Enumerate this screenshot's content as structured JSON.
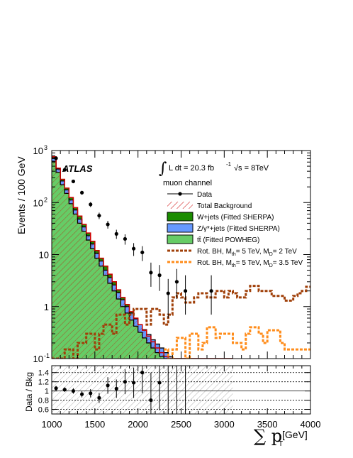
{
  "chart_data": {
    "type": "area",
    "experiment_label": "ATLAS",
    "lumi_label": "L dt = 20.3 fb",
    "lumi_superscript": "-1",
    "energy_label": "√s = 8TeV",
    "channel_label": "muon channel",
    "ylabel": "Events / 100 GeV",
    "ratio_ylabel": "Data / Bkg",
    "xlabel_prefix": "∑ p",
    "xlabel_subscript": "T",
    "xlabel_unit": "[GeV]",
    "xlim": [
      1000,
      4000
    ],
    "ylim": [
      0.1,
      1000
    ],
    "yscale": "log",
    "ratio_ylim": [
      0.5,
      1.55
    ],
    "x_ticks": [
      1000,
      1500,
      2000,
      2500,
      3000,
      3500,
      4000
    ],
    "y_ticks": [
      {
        "value": 0.1,
        "base": "10",
        "exp": "-1"
      },
      {
        "value": 1,
        "base": "1",
        "exp": ""
      },
      {
        "value": 10,
        "base": "10",
        "exp": ""
      },
      {
        "value": 100,
        "base": "10",
        "exp": "2"
      },
      {
        "value": 1000,
        "base": "10",
        "exp": "3"
      }
    ],
    "ratio_ticks": [
      "0.6",
      "0.8",
      "1",
      "1.2",
      "1.4"
    ],
    "ratio_tick_values": [
      0.6,
      0.8,
      1.0,
      1.2,
      1.4
    ],
    "bin_edges": [
      1000,
      1050,
      1100,
      1150,
      1200,
      1250,
      1300,
      1350,
      1400,
      1450,
      1500,
      1550,
      1600,
      1650,
      1700,
      1750,
      1800,
      1850,
      1900,
      1950,
      2000,
      2050,
      2100,
      2150,
      2200,
      2250,
      2300,
      2350,
      2400,
      2450,
      2500,
      2550,
      2600,
      2650,
      2700,
      2750,
      2800,
      2850,
      2900,
      2950,
      3000,
      3050,
      3100
    ],
    "ttbar": [
      620,
      380,
      220,
      150,
      95,
      60,
      40,
      28,
      19,
      13,
      8.5,
      6,
      4,
      2.8,
      2,
      1.4,
      1.0,
      0.75,
      0.55,
      0.42,
      0.32,
      0.25,
      0.2,
      0.16,
      0.13,
      0.11,
      0.1,
      0.1,
      0.1,
      0.1,
      0.1,
      0.1,
      0.1,
      0.1,
      0.1,
      0.1,
      0.1,
      0.1,
      0.1,
      0.1,
      0.1,
      0.1
    ],
    "zjets": [
      720,
      440,
      260,
      175,
      112,
      72,
      48,
      34,
      23,
      16,
      10.5,
      7.5,
      5,
      3.6,
      2.6,
      1.85,
      1.35,
      1.0,
      0.75,
      0.58,
      0.45,
      0.36,
      0.29,
      0.23,
      0.19,
      0.16,
      0.13,
      0.11,
      0.1,
      0.1,
      0.1,
      0.1,
      0.1,
      0.1,
      0.1,
      0.1,
      0.1,
      0.1,
      0.1,
      0.1,
      0.1,
      0.1
    ],
    "total": [
      760,
      460,
      280,
      190,
      125,
      80,
      55,
      38,
      26,
      18,
      12,
      8.5,
      6,
      4.2,
      3.0,
      2.1,
      1.5,
      1.1,
      0.8,
      0.6,
      0.45,
      0.35,
      0.27,
      0.21,
      0.16,
      0.13,
      0.11,
      0.1,
      0.1,
      0.1,
      0.1,
      0.1,
      0.1,
      0.1,
      0.1,
      0.1,
      0.1,
      0.1,
      0.1,
      0.1,
      0.1,
      0.1
    ],
    "data_points": [
      {
        "x": 1050,
        "y": 710,
        "err_lo": 30,
        "err_hi": 30
      },
      {
        "x": 1150,
        "y": 425,
        "err_lo": 22,
        "err_hi": 22
      },
      {
        "x": 1250,
        "y": 255,
        "err_lo": 17,
        "err_hi": 17
      },
      {
        "x": 1350,
        "y": 155,
        "err_lo": 13,
        "err_hi": 13
      },
      {
        "x": 1450,
        "y": 92,
        "err_lo": 10,
        "err_hi": 10
      },
      {
        "x": 1550,
        "y": 56,
        "err_lo": 8,
        "err_hi": 8
      },
      {
        "x": 1650,
        "y": 38,
        "err_lo": 6.5,
        "err_hi": 6.5
      },
      {
        "x": 1750,
        "y": 25,
        "err_lo": 5,
        "err_hi": 5
      },
      {
        "x": 1850,
        "y": 20,
        "err_lo": 4.5,
        "err_hi": 4.5
      },
      {
        "x": 1950,
        "y": 13,
        "err_lo": 3.6,
        "err_hi": 3.6
      },
      {
        "x": 2050,
        "y": 11,
        "err_lo": 3.5,
        "err_hi": 3.5
      },
      {
        "x": 2150,
        "y": 4.5,
        "err_lo": 2.1,
        "err_hi": 2.5
      },
      {
        "x": 2250,
        "y": 4.0,
        "err_lo": 2.0,
        "err_hi": 2.3
      },
      {
        "x": 2350,
        "y": 1.8,
        "err_lo": 1.2,
        "err_hi": 1.6
      },
      {
        "x": 2450,
        "y": 3.0,
        "err_lo": 1.6,
        "err_hi": 2.3
      },
      {
        "x": 2550,
        "y": 2.0,
        "err_lo": 1.3,
        "err_hi": 2.0
      },
      {
        "x": 2850,
        "y": 2.0,
        "err_lo": 1.3,
        "err_hi": 2.0
      }
    ],
    "bh_md2": [
      0.1,
      0.1,
      0.1,
      0.15,
      0.15,
      0.1,
      0.2,
      0.2,
      0.3,
      0.3,
      0.15,
      0.3,
      0.45,
      0.45,
      0.3,
      0.7,
      0.7,
      0.45,
      0.7,
      0.9,
      0.9,
      0.9,
      0.45,
      0.9,
      0.9,
      0.7,
      0.45,
      0.7,
      1.5,
      1.8,
      1.5,
      1.2,
      1.2,
      1.5,
      1.8,
      1.8,
      1.5,
      1.5,
      2.0,
      2.0,
      1.5,
      2.0,
      1.8,
      1.5,
      1.5,
      2.0,
      2.5,
      2.5,
      2.0,
      2.0,
      2.0,
      1.6,
      1.6,
      1.6,
      1.3,
      1.3,
      1.6,
      1.8,
      2.0,
      2.4
    ],
    "bh_md35_start": 2300,
    "bh_md35": [
      0.15,
      0.1,
      0.15,
      0.25,
      0.25,
      0.1,
      0.3,
      0.3,
      0.15,
      0.2,
      0.4,
      0.4,
      0.25,
      0.3,
      0.3,
      0.3,
      0.2,
      0.2,
      0.15,
      0.3,
      0.4,
      0.4,
      0.3,
      0.2,
      0.35,
      0.35,
      0.35,
      0.2,
      0.15,
      0.15,
      0.15,
      0.15,
      0.15,
      0.15
    ],
    "ratio_points": [
      {
        "x": 1050,
        "y": 1.06,
        "err_lo": 0.05,
        "err_hi": 0.05
      },
      {
        "x": 1150,
        "y": 1.03,
        "err_lo": 0.05,
        "err_hi": 0.05
      },
      {
        "x": 1250,
        "y": 1.0,
        "err_lo": 0.06,
        "err_hi": 0.06
      },
      {
        "x": 1350,
        "y": 0.93,
        "err_lo": 0.07,
        "err_hi": 0.07
      },
      {
        "x": 1450,
        "y": 0.95,
        "err_lo": 0.09,
        "err_hi": 0.09
      },
      {
        "x": 1550,
        "y": 0.85,
        "err_lo": 0.11,
        "err_hi": 0.11
      },
      {
        "x": 1650,
        "y": 1.12,
        "err_lo": 0.18,
        "err_hi": 0.18
      },
      {
        "x": 1750,
        "y": 1.05,
        "err_lo": 0.2,
        "err_hi": 0.2
      },
      {
        "x": 1850,
        "y": 1.2,
        "err_lo": 0.27,
        "err_hi": 0.27
      },
      {
        "x": 1950,
        "y": 1.18,
        "err_lo": 0.33,
        "err_hi": 0.33
      },
      {
        "x": 2050,
        "y": 1.4,
        "err_lo": 0.45,
        "err_hi": 0.45
      },
      {
        "x": 2150,
        "y": 0.8,
        "err_lo": 0.4,
        "err_hi": 0.6
      },
      {
        "x": 2250,
        "y": 1.18,
        "err_lo": 0.6,
        "err_hi": 0.7
      }
    ],
    "ratio_error_lines_x": [
      2350,
      2450,
      2550
    ],
    "legend": [
      {
        "label": "Data",
        "kind": "data"
      },
      {
        "label": "Total Background",
        "kind": "hatch"
      },
      {
        "label": "W+jets (Fitted SHERPA)",
        "kind": "fill",
        "color": "#1a8c00"
      },
      {
        "label": "Z/γ*+jets (Fitted SHERPA)",
        "kind": "fill",
        "color": "#6699ff"
      },
      {
        "label": "(Fitted POWHEG)",
        "prefix": "tt̄",
        "kind": "fill",
        "color": "#66cc66"
      },
      {
        "label": "Rot. BH, M",
        "sub1": "th",
        "mid": "= 5 TeV, M",
        "sub2": "D",
        "end": "= 2 TeV",
        "kind": "dash",
        "color": "#a0400a"
      },
      {
        "label": "Rot. BH, M",
        "sub1": "th",
        "mid": "= 5 TeV, M",
        "sub2": "D",
        "end": "= 3.5 TeV",
        "kind": "dash",
        "color": "#ff8c1a"
      }
    ],
    "colors": {
      "wjets": "#1a8c00",
      "zjets": "#6699ff",
      "ttbar": "#66cc66",
      "total": "#cc0000",
      "bh_md2": "#a0400a",
      "bh_md35": "#ff8c1a"
    }
  }
}
